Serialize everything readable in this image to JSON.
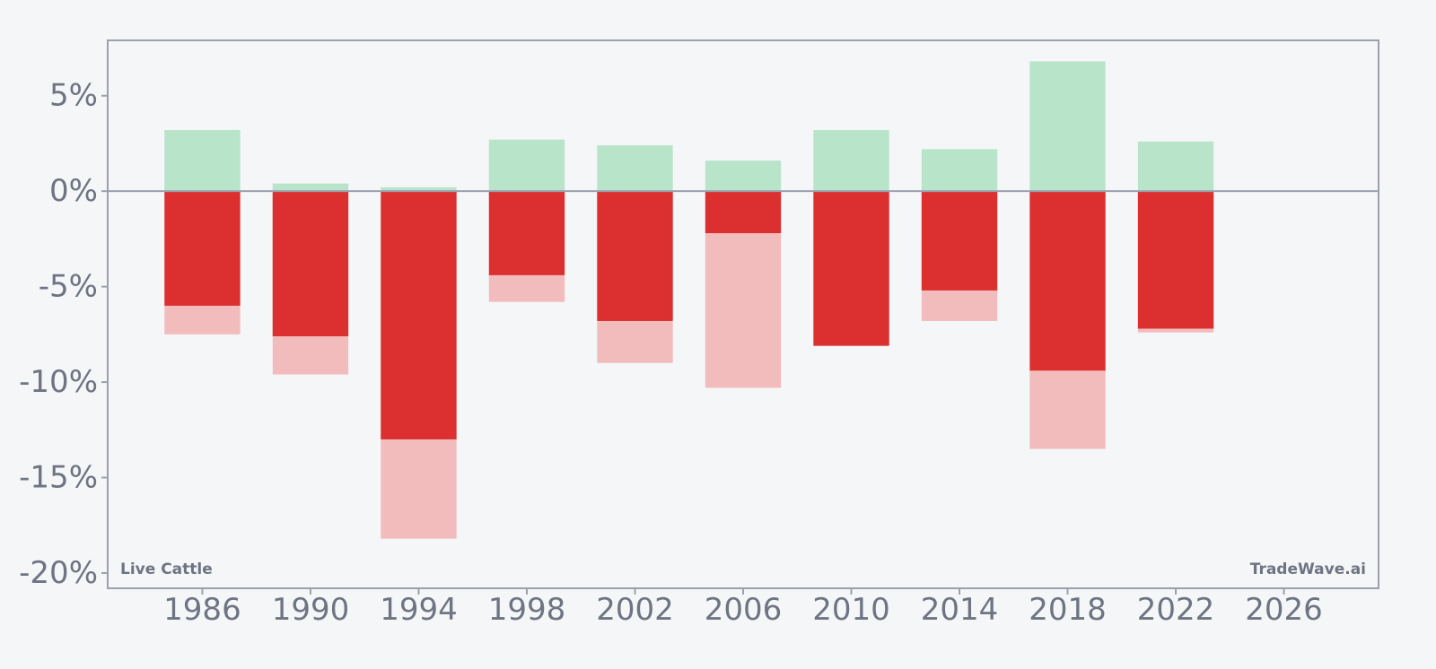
{
  "chart_data": {
    "type": "bar",
    "categories": [
      "1986",
      "1990",
      "1994",
      "1998",
      "2002",
      "2006",
      "2010",
      "2014",
      "2018",
      "2022"
    ],
    "series": [
      {
        "values": [
          3.2,
          0.4,
          0.2,
          2.7,
          2.4,
          1.6,
          3.2,
          2.2,
          6.8,
          2.6
        ]
      },
      {
        "values": [
          -6.0,
          -7.6,
          -13.0,
          -4.4,
          -6.8,
          -2.2,
          -8.1,
          -5.2,
          -9.4,
          -7.2
        ]
      },
      {
        "values": [
          -7.5,
          -9.6,
          -18.2,
          -5.8,
          -9.0,
          -10.3,
          -8.1,
          -6.8,
          -13.5,
          -7.4
        ]
      }
    ],
    "x_ticks": [
      "1986",
      "1990",
      "1994",
      "1998",
      "2002",
      "2006",
      "2010",
      "2014",
      "2018",
      "2022",
      "2026"
    ],
    "y_ticks": [
      {
        "value": 5,
        "label": "5%"
      },
      {
        "value": 0,
        "label": "0%"
      },
      {
        "value": -5,
        "label": "-5%"
      },
      {
        "value": -10,
        "label": "-10%"
      },
      {
        "value": -15,
        "label": "-15%"
      },
      {
        "value": -20,
        "label": "-20%"
      }
    ],
    "xlim": [
      1982.5,
      2029.5
    ],
    "ylim": [
      -20.8,
      7.9
    ],
    "grid": false,
    "colors": {
      "gain": "#b8e4c9",
      "loss_dark": "#dc3030",
      "loss_light": "#f3bcbc",
      "axis": "#9ca0ad",
      "text": "#6e7482"
    }
  },
  "labels": {
    "instrument": "Live Cattle",
    "brand": "TradeWave.ai"
  }
}
